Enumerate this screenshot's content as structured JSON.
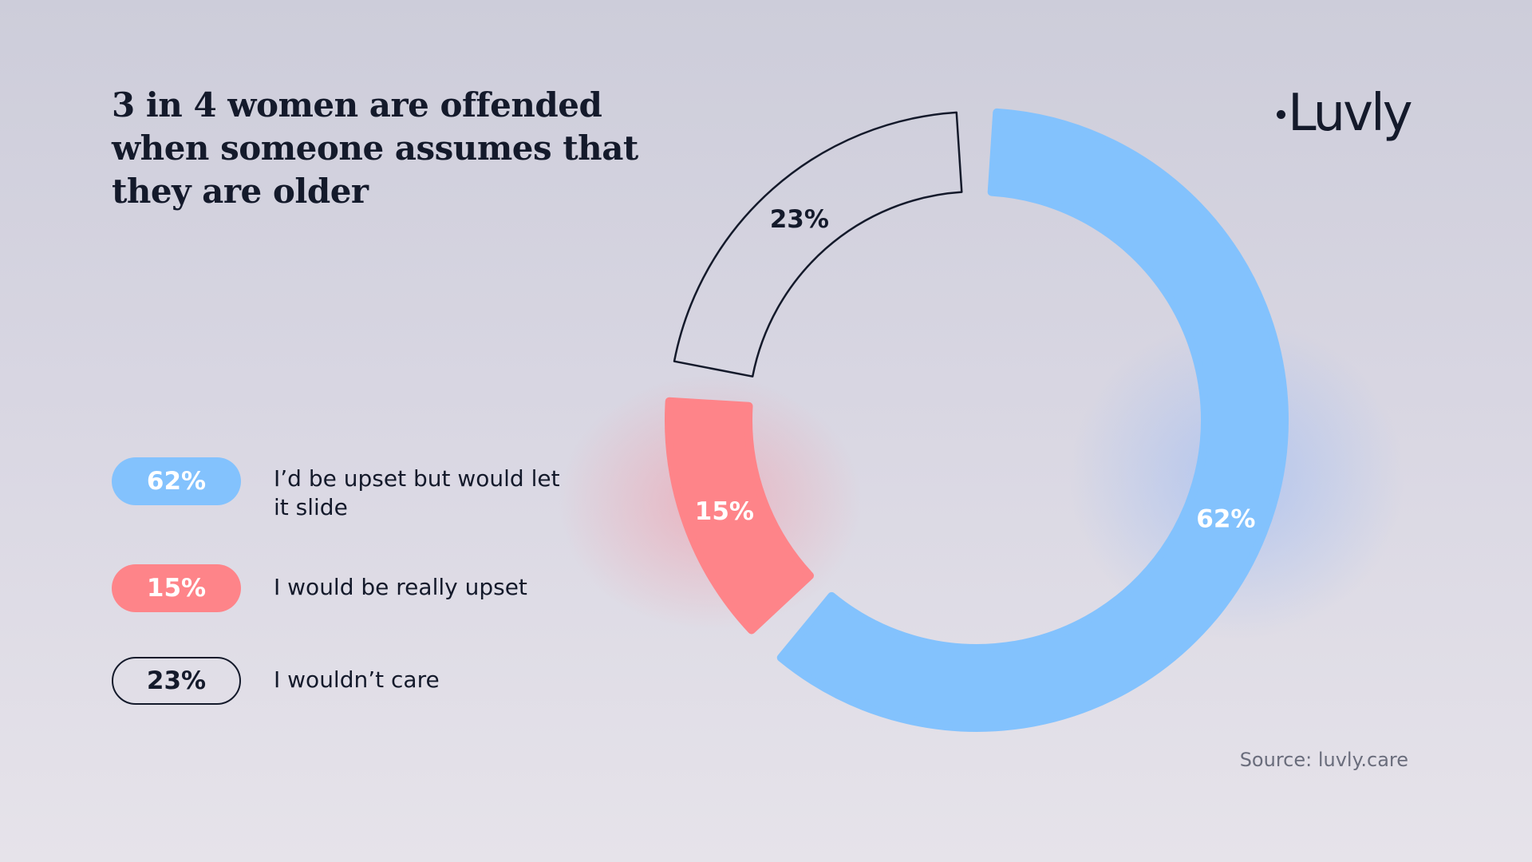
{
  "title": "3 in 4 women are offended when someone assumes that they are older",
  "logo": {
    "text": "Luvly"
  },
  "source": "Source: luvly.care",
  "colors": {
    "blue": "#83c2fd",
    "red": "#fe8489",
    "outline": "#141a2b",
    "text": "#141a2b"
  },
  "legend": [
    {
      "value": "62%",
      "label": "I’d be upset but would let it slide",
      "style": "blue"
    },
    {
      "value": "15%",
      "label": "I would be really upset",
      "style": "red"
    },
    {
      "value": "23%",
      "label": "I wouldn’t care",
      "style": "outline"
    }
  ],
  "chart_data": {
    "type": "pie",
    "variant": "donut",
    "title": "3 in 4 women are offended when someone assumes that they are older",
    "categories": [
      "I’d be upset but would let it slide",
      "I would be really upset",
      "I wouldn’t care"
    ],
    "values": [
      62,
      15,
      23
    ],
    "labels": [
      "62%",
      "15%",
      "23%"
    ],
    "colors": [
      "#83c2fd",
      "#fe8489",
      "none"
    ],
    "legend_position": "left"
  }
}
